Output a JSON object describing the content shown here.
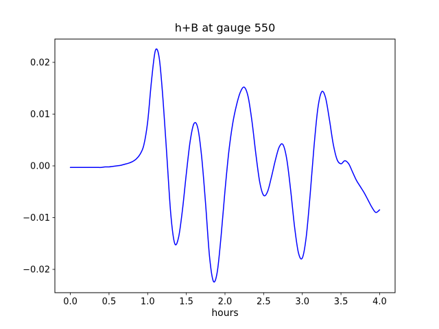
{
  "figure": {
    "background": "#ffffff",
    "frame_color": "#000000"
  },
  "chart_data": {
    "type": "line",
    "title": "h+B at gauge 550",
    "xlabel": "hours",
    "ylabel": "",
    "xlim": [
      -0.2,
      4.2
    ],
    "ylim": [
      -0.0245,
      0.0245
    ],
    "grid": false,
    "legend": "none",
    "line_color": "#0000ff",
    "x_ticks": [
      0.0,
      0.5,
      1.0,
      1.5,
      2.0,
      2.5,
      3.0,
      3.5,
      4.0
    ],
    "x_tick_labels": [
      "0.0",
      "0.5",
      "1.0",
      "1.5",
      "2.0",
      "2.5",
      "3.0",
      "3.5",
      "4.0"
    ],
    "y_ticks": [
      -0.02,
      -0.01,
      0.0,
      0.01,
      0.02
    ],
    "y_tick_labels": [
      "−0.02",
      "−0.01",
      "0.00",
      "0.01",
      "0.02"
    ],
    "series": [
      {
        "name": "h+B",
        "x": [
          0.0,
          0.05,
          0.1,
          0.15,
          0.2,
          0.25,
          0.3,
          0.35,
          0.4,
          0.45,
          0.5,
          0.55,
          0.6,
          0.65,
          0.7,
          0.75,
          0.8,
          0.85,
          0.9,
          0.95,
          1.0,
          1.05,
          1.1,
          1.15,
          1.2,
          1.25,
          1.3,
          1.35,
          1.4,
          1.45,
          1.5,
          1.55,
          1.6,
          1.65,
          1.7,
          1.75,
          1.8,
          1.85,
          1.9,
          1.95,
          2.0,
          2.05,
          2.1,
          2.15,
          2.2,
          2.25,
          2.3,
          2.35,
          2.4,
          2.45,
          2.5,
          2.55,
          2.6,
          2.65,
          2.7,
          2.75,
          2.8,
          2.85,
          2.9,
          2.95,
          3.0,
          3.05,
          3.1,
          3.15,
          3.2,
          3.25,
          3.3,
          3.35,
          3.4,
          3.45,
          3.5,
          3.55,
          3.6,
          3.65,
          3.7,
          3.75,
          3.8,
          3.85,
          3.9,
          3.95,
          4.0
        ],
        "y": [
          -0.0003,
          -0.0003,
          -0.0003,
          -0.0003,
          -0.0003,
          -0.0003,
          -0.0003,
          -0.0003,
          -0.0003,
          -0.0002,
          -0.0002,
          -0.0001,
          0.0,
          0.0001,
          0.0003,
          0.0005,
          0.0008,
          0.0013,
          0.0022,
          0.004,
          0.0085,
          0.0165,
          0.0223,
          0.0208,
          0.0125,
          0.0015,
          -0.0095,
          -0.015,
          -0.0138,
          -0.0085,
          -0.0015,
          0.0048,
          0.0082,
          0.0072,
          0.0015,
          -0.0075,
          -0.0175,
          -0.0223,
          -0.0205,
          -0.0135,
          -0.0048,
          0.0028,
          0.0082,
          0.0118,
          0.0143,
          0.0152,
          0.0133,
          0.0085,
          0.0022,
          -0.0032,
          -0.0057,
          -0.005,
          -0.0022,
          0.001,
          0.0036,
          0.0041,
          0.0012,
          -0.0048,
          -0.0118,
          -0.0168,
          -0.0178,
          -0.0138,
          -0.0058,
          0.0035,
          0.011,
          0.0143,
          0.0132,
          0.009,
          0.0042,
          0.0012,
          0.0004,
          0.001,
          0.0004,
          -0.0012,
          -0.0028,
          -0.004,
          -0.0052,
          -0.0066,
          -0.008,
          -0.009,
          -0.0085
        ]
      }
    ]
  }
}
